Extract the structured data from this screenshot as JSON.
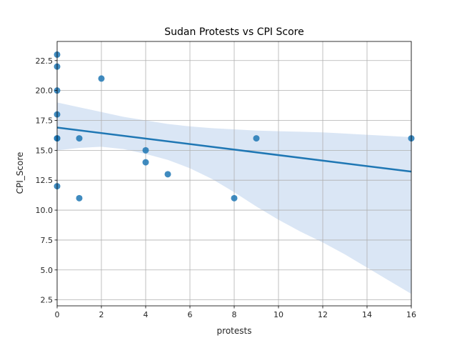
{
  "chart_data": {
    "type": "scatter",
    "title": "Sudan Protests vs CPI Score",
    "xlabel": "protests",
    "ylabel": "CPI_Score",
    "xlim": [
      0,
      16
    ],
    "ylim": [
      2,
      24.1
    ],
    "x_ticks": [
      0,
      2,
      4,
      6,
      8,
      10,
      12,
      14,
      16
    ],
    "x_tick_labels": [
      "0",
      "2",
      "4",
      "6",
      "8",
      "10",
      "12",
      "14",
      "16"
    ],
    "y_ticks": [
      2.5,
      5.0,
      7.5,
      10.0,
      12.5,
      15.0,
      17.5,
      20.0,
      22.5
    ],
    "y_tick_labels": [
      "2.5",
      "5.0",
      "7.5",
      "10.0",
      "12.5",
      "15.0",
      "17.5",
      "20.0",
      "22.5"
    ],
    "grid": true,
    "points": [
      {
        "x": 0,
        "y": 23
      },
      {
        "x": 0,
        "y": 22
      },
      {
        "x": 0,
        "y": 20
      },
      {
        "x": 0,
        "y": 18
      },
      {
        "x": 0,
        "y": 16
      },
      {
        "x": 0,
        "y": 16
      },
      {
        "x": 0,
        "y": 12
      },
      {
        "x": 1,
        "y": 16
      },
      {
        "x": 1,
        "y": 11
      },
      {
        "x": 2,
        "y": 21
      },
      {
        "x": 4,
        "y": 15
      },
      {
        "x": 4,
        "y": 14
      },
      {
        "x": 5,
        "y": 13
      },
      {
        "x": 8,
        "y": 11
      },
      {
        "x": 9,
        "y": 16
      },
      {
        "x": 16,
        "y": 16
      }
    ],
    "regression": {
      "intercept": 16.9,
      "slope": -0.23
    },
    "confidence_band": {
      "x": [
        0,
        1,
        2,
        3,
        4,
        5,
        6,
        7,
        8,
        9,
        10,
        11,
        12,
        13,
        14,
        15,
        16
      ],
      "upper": [
        19.0,
        18.6,
        18.2,
        17.8,
        17.5,
        17.2,
        17.0,
        16.85,
        16.75,
        16.65,
        16.6,
        16.55,
        16.5,
        16.4,
        16.3,
        16.2,
        16.1
      ],
      "lower": [
        15.0,
        15.2,
        15.3,
        15.1,
        14.7,
        14.2,
        13.5,
        12.6,
        11.5,
        10.3,
        9.2,
        8.2,
        7.3,
        6.3,
        5.2,
        4.1,
        3.0
      ]
    },
    "colors": {
      "point": "#1f77b4",
      "line": "#1f77b4",
      "band": "#aec7e8",
      "grid": "#b0b0b0"
    }
  }
}
